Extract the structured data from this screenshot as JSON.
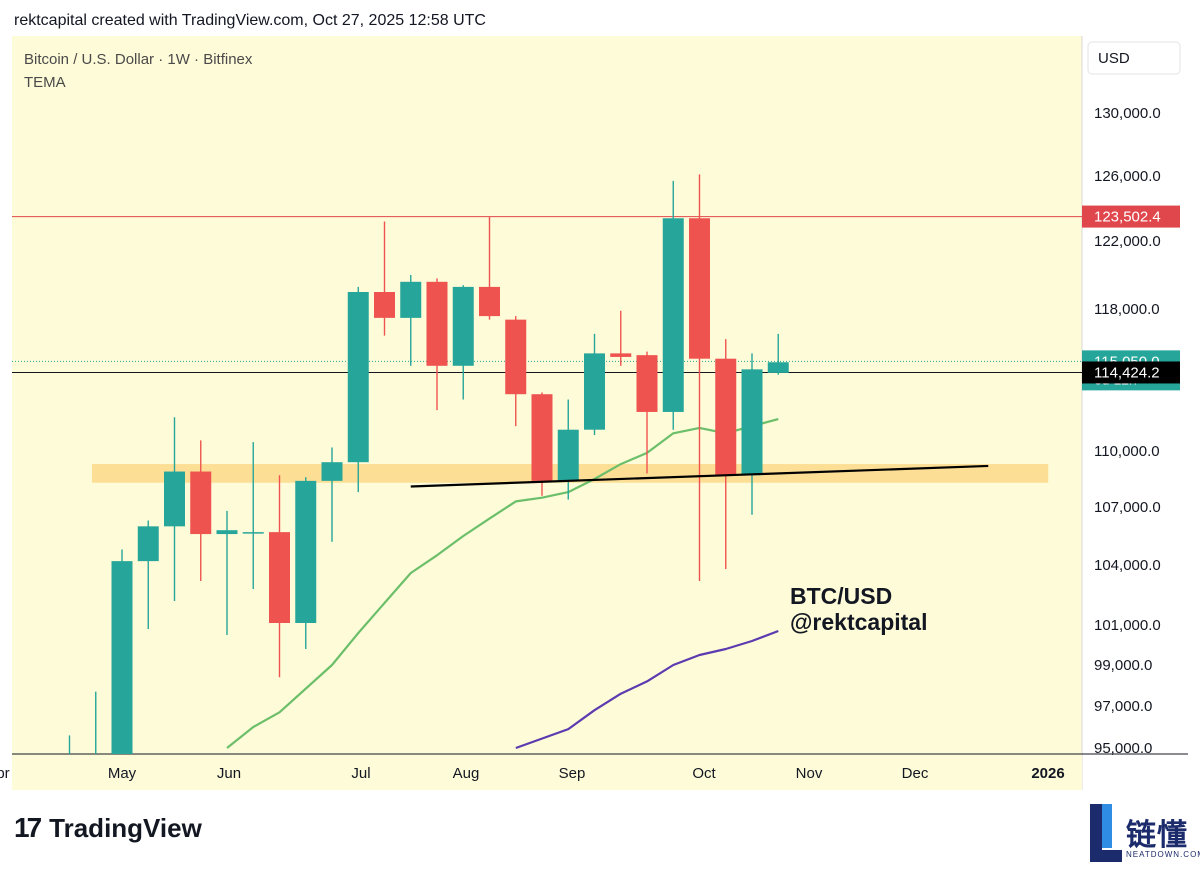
{
  "header": {
    "text": "rektcapital created with TradingView.com, Oct 27, 2025 12:58 UTC"
  },
  "footer": {
    "brand_mark": "17",
    "brand_name": "TradingView"
  },
  "watermark": {
    "cn": "链懂",
    "en": "NEATDOWN.COM"
  },
  "colors": {
    "bg": "#fefbd8",
    "up": "#26a69a",
    "down": "#ef5350",
    "tema": "#6cbf6a",
    "purple": "#5c3ab0",
    "resistance": "#e0474c",
    "support_zone": "#fcd98a"
  },
  "chart_data": {
    "type": "candlestick",
    "title": "Bitcoin / U.S. Dollar · 1W · Bitfinex",
    "indicator_label": "TEMA",
    "currency": "USD",
    "ylim": [
      95000,
      131000
    ],
    "y_ticks": [
      "130,000.0",
      "126,000.0",
      "122,000.0",
      "118,000.0",
      "110,000.0",
      "107,000.0",
      "104,000.0",
      "101,000.0",
      "99,000.0",
      "97,000.0",
      "95,000.0"
    ],
    "x_labels": [
      "Apr",
      "May",
      "Jun",
      "Jul",
      "Aug",
      "Sep",
      "Oct",
      "Nov",
      "Dec",
      "2026"
    ],
    "candles": [
      {
        "date": "2025-04-21",
        "open": 85000,
        "high": 95600,
        "low": 84000,
        "close": 94000
      },
      {
        "date": "2025-04-28",
        "open": 94000,
        "high": 97700,
        "low": 92000,
        "close": 94500
      },
      {
        "date": "2025-05-05",
        "open": 94500,
        "high": 104800,
        "low": 93500,
        "close": 104200
      },
      {
        "date": "2025-05-12",
        "open": 104200,
        "high": 106300,
        "low": 100800,
        "close": 106000
      },
      {
        "date": "2025-05-19",
        "open": 106000,
        "high": 111900,
        "low": 102200,
        "close": 108900
      },
      {
        "date": "2025-05-26",
        "open": 108900,
        "high": 110600,
        "low": 103200,
        "close": 105600
      },
      {
        "date": "2025-06-02",
        "open": 105600,
        "high": 106800,
        "low": 100500,
        "close": 105800
      },
      {
        "date": "2025-06-09",
        "open": 105700,
        "high": 110500,
        "low": 102800,
        "close": 105700
      },
      {
        "date": "2025-06-16",
        "open": 105700,
        "high": 108700,
        "low": 98400,
        "close": 101100
      },
      {
        "date": "2025-06-23",
        "open": 101100,
        "high": 108600,
        "low": 99800,
        "close": 108400
      },
      {
        "date": "2025-06-30",
        "open": 108400,
        "high": 110200,
        "low": 105200,
        "close": 109400
      },
      {
        "date": "2025-07-07",
        "open": 109400,
        "high": 119300,
        "low": 107800,
        "close": 119000
      },
      {
        "date": "2025-07-14",
        "open": 119000,
        "high": 123200,
        "low": 116500,
        "close": 117500
      },
      {
        "date": "2025-07-21",
        "open": 117500,
        "high": 120000,
        "low": 114800,
        "close": 119600
      },
      {
        "date": "2025-07-28",
        "open": 119600,
        "high": 119800,
        "low": 112300,
        "close": 114800
      },
      {
        "date": "2025-08-04",
        "open": 114800,
        "high": 119400,
        "low": 112900,
        "close": 119300
      },
      {
        "date": "2025-08-11",
        "open": 119300,
        "high": 123500,
        "low": 117400,
        "close": 117600
      },
      {
        "date": "2025-08-18",
        "open": 117400,
        "high": 117600,
        "low": 111400,
        "close": 113200
      },
      {
        "date": "2025-08-25",
        "open": 113200,
        "high": 113300,
        "low": 107600,
        "close": 108400
      },
      {
        "date": "2025-09-01",
        "open": 108400,
        "high": 112900,
        "low": 107400,
        "close": 111200
      },
      {
        "date": "2025-09-08",
        "open": 111200,
        "high": 116600,
        "low": 110900,
        "close": 115500
      },
      {
        "date": "2025-09-15",
        "open": 115500,
        "high": 117900,
        "low": 114800,
        "close": 115300
      },
      {
        "date": "2025-09-22",
        "open": 115400,
        "high": 115600,
        "low": 108800,
        "close": 112200
      },
      {
        "date": "2025-09-29",
        "open": 112200,
        "high": 125700,
        "low": 111200,
        "close": 123400
      },
      {
        "date": "2025-10-06",
        "open": 123400,
        "high": 126100,
        "low": 103200,
        "close": 115200
      },
      {
        "date": "2025-10-13",
        "open": 115200,
        "high": 116300,
        "low": 103800,
        "close": 108700
      },
      {
        "date": "2025-10-20",
        "open": 108700,
        "high": 115500,
        "low": 106600,
        "close": 114600
      },
      {
        "date": "2025-10-27",
        "open": 114400,
        "high": 116600,
        "low": 114300,
        "close": 115000
      }
    ],
    "tema_line": [
      {
        "date": "2025-06-02",
        "value": 95000
      },
      {
        "date": "2025-06-09",
        "value": 96000
      },
      {
        "date": "2025-06-16",
        "value": 96700
      },
      {
        "date": "2025-06-30",
        "value": 99000
      },
      {
        "date": "2025-07-07",
        "value": 100600
      },
      {
        "date": "2025-07-14",
        "value": 102100
      },
      {
        "date": "2025-07-21",
        "value": 103600
      },
      {
        "date": "2025-07-28",
        "value": 104500
      },
      {
        "date": "2025-08-04",
        "value": 105500
      },
      {
        "date": "2025-08-11",
        "value": 106400
      },
      {
        "date": "2025-08-18",
        "value": 107300
      },
      {
        "date": "2025-08-25",
        "value": 107500
      },
      {
        "date": "2025-09-01",
        "value": 107800
      },
      {
        "date": "2025-09-08",
        "value": 108500
      },
      {
        "date": "2025-09-15",
        "value": 109300
      },
      {
        "date": "2025-09-22",
        "value": 109900
      },
      {
        "date": "2025-09-29",
        "value": 111000
      },
      {
        "date": "2025-10-06",
        "value": 111300
      },
      {
        "date": "2025-10-13",
        "value": 111000
      },
      {
        "date": "2025-10-20",
        "value": 111400
      },
      {
        "date": "2025-10-27",
        "value": 111800
      }
    ],
    "purple_line": [
      {
        "date": "2025-08-18",
        "value": 95000
      },
      {
        "date": "2025-09-01",
        "value": 95900
      },
      {
        "date": "2025-09-08",
        "value": 96800
      },
      {
        "date": "2025-09-15",
        "value": 97600
      },
      {
        "date": "2025-09-22",
        "value": 98200
      },
      {
        "date": "2025-09-29",
        "value": 99000
      },
      {
        "date": "2025-10-06",
        "value": 99500
      },
      {
        "date": "2025-10-13",
        "value": 99800
      },
      {
        "date": "2025-10-20",
        "value": 100200
      },
      {
        "date": "2025-10-27",
        "value": 100700
      }
    ],
    "resistance": {
      "value": 123502.4,
      "label": "123,502.4"
    },
    "last_price": {
      "value": 115050.0,
      "label": "115,050.0",
      "countdown": "6d 12h"
    },
    "crosshair": {
      "value": 114424.2,
      "label": "114,424.2"
    },
    "support_zone": {
      "low": 108300,
      "high": 109300,
      "from": "2025-04-27",
      "to": "2026-01-07"
    },
    "trendline": [
      {
        "date": "2025-07-21",
        "value": 108100
      },
      {
        "date": "2025-12-22",
        "value": 109200
      }
    ],
    "annotation": [
      "BTC/USD",
      "@rektcapital"
    ]
  }
}
